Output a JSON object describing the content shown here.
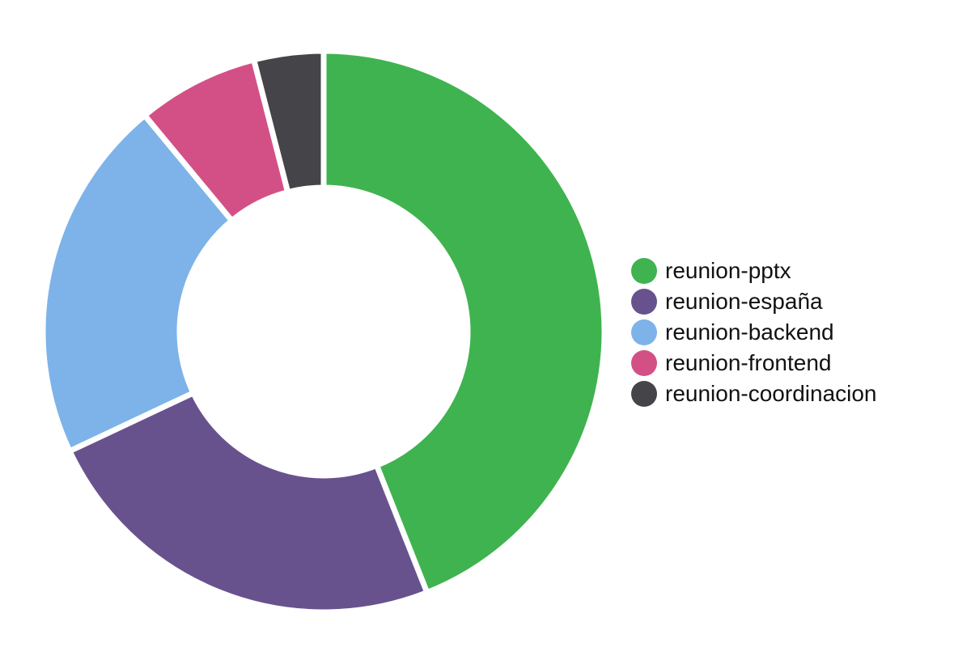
{
  "chart_data": {
    "type": "pie",
    "variant": "donut",
    "title": "",
    "categories": [
      "reunion-pptx",
      "reunion-españa",
      "reunion-backend",
      "reunion-frontend",
      "reunion-coordinacion"
    ],
    "values": [
      44,
      24,
      21,
      7,
      4
    ],
    "colors": [
      "#3fb34f",
      "#67528e",
      "#7db3e8",
      "#d35087",
      "#454449"
    ],
    "legend": {
      "position": "right"
    },
    "start": "12 o'clock",
    "direction": "clockwise"
  }
}
